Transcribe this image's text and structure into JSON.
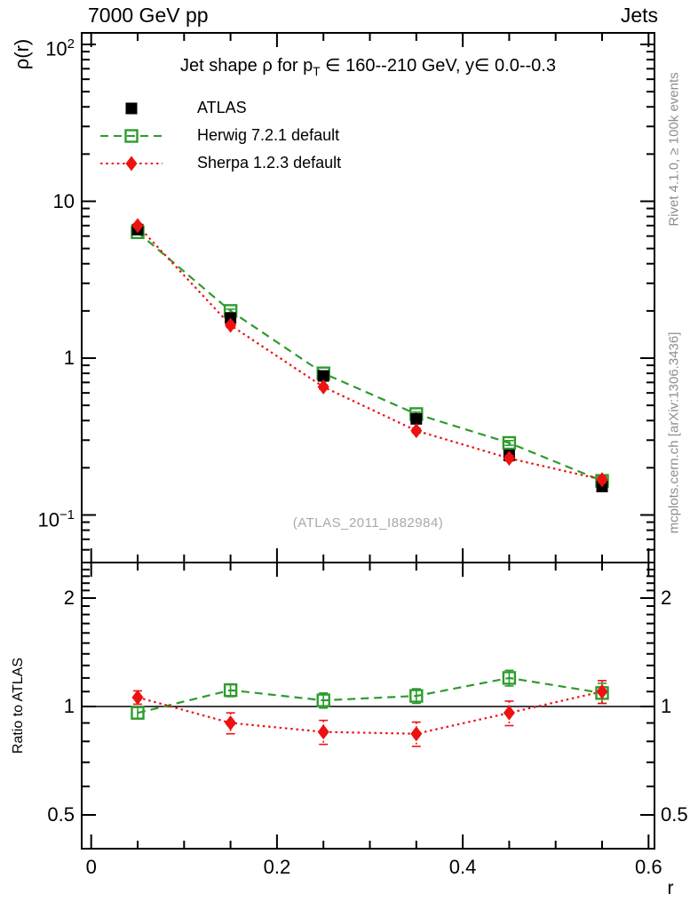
{
  "header": {
    "left": "7000 GeV pp",
    "right": "Jets"
  },
  "side_notes": {
    "top_right": "Rivet 4.1.0, ≥ 100k events",
    "bottom_right": "mcplots.cern.ch [arXiv:1306.3436]"
  },
  "xlabel": "r",
  "main_panel": {
    "ylabel": "ρ(r)",
    "title_parts": {
      "pre": "Jet shape ρ for p",
      "sub": "T",
      "post": " ∈ 160--210 GeV, y∈ 0.0--0.3"
    }
  },
  "ratio_panel": {
    "ylabel": "Ratio to ATLAS"
  },
  "colors": {
    "gray_text": "#8e8e8e",
    "watermark": "#a9a9a9",
    "frame": "#000000"
  },
  "chart_data": [
    {
      "type": "scatter",
      "panel": "main",
      "title": "Jet shape ρ for p_T ∈ 160--210 GeV, y∈ 0.0--0.3",
      "xlabel": "r",
      "ylabel": "ρ(r)",
      "yscale": "log",
      "xlim": [
        -0.01,
        0.61
      ],
      "ylim": [
        0.05,
        118
      ],
      "legend_position": "top-left",
      "watermark": "(ATLAS_2011_I882984)",
      "x": [
        0.05,
        0.15,
        0.25,
        0.35,
        0.45,
        0.55
      ],
      "x_ticks": [
        {
          "value": 0,
          "label": "0"
        },
        {
          "value": 0.2,
          "label": "0.2"
        },
        {
          "value": 0.4,
          "label": "0.4"
        },
        {
          "value": 0.6,
          "label": "0.6"
        }
      ],
      "x_minor_step": 0.05,
      "y_ticks": [
        {
          "value": 100,
          "base": "10",
          "exp": "2"
        },
        {
          "value": 10,
          "base": "10",
          "exp": ""
        },
        {
          "value": 1,
          "base": "1",
          "exp": ""
        },
        {
          "value": 0.1,
          "base": "10",
          "exp": "−1"
        }
      ],
      "series": [
        {
          "name": "ATLAS",
          "color": "#000000",
          "marker": "filled-square",
          "line": "none",
          "values": [
            6.6,
            1.8,
            0.77,
            0.41,
            0.24,
            0.152
          ],
          "errors": [
            0.25,
            0.07,
            0.03,
            0.018,
            0.012,
            0.008
          ]
        },
        {
          "name": "Herwig 7.2.1 default",
          "color": "#2e9b2e",
          "marker": "open-square",
          "line": "dashed",
          "values": [
            6.35,
            2.0,
            0.8,
            0.44,
            0.288,
            0.165
          ],
          "errors": [
            0.15,
            0.05,
            0.022,
            0.013,
            0.01,
            0.007
          ]
        },
        {
          "name": "Sherpa 1.2.3 default",
          "color": "#ee1111",
          "marker": "filled-diamond",
          "line": "dotted",
          "values": [
            7.0,
            1.62,
            0.655,
            0.345,
            0.23,
            0.168
          ],
          "errors": [
            0.2,
            0.05,
            0.02,
            0.012,
            0.009,
            0.007
          ]
        }
      ]
    },
    {
      "type": "scatter",
      "panel": "ratio",
      "ylabel": "Ratio to ATLAS",
      "yscale": "log",
      "xlim": [
        -0.01,
        0.61
      ],
      "ylim": [
        0.403,
        2.51
      ],
      "reference_line": 1,
      "x": [
        0.05,
        0.15,
        0.25,
        0.35,
        0.45,
        0.55
      ],
      "y_ticks": [
        {
          "value": 2,
          "label": "2"
        },
        {
          "value": 1,
          "label": "1"
        },
        {
          "value": 0.5,
          "label": "0.5"
        }
      ],
      "series": [
        {
          "name": "Herwig 7.2.1 default",
          "color": "#2e9b2e",
          "marker": "open-square",
          "line": "dashed",
          "values": [
            0.96,
            1.11,
            1.04,
            1.07,
            1.2,
            1.09
          ],
          "errors": [
            0.035,
            0.045,
            0.05,
            0.05,
            0.06,
            0.07
          ]
        },
        {
          "name": "Sherpa 1.2.3 default",
          "color": "#ee1111",
          "marker": "filled-diamond",
          "line": "dotted",
          "values": [
            1.06,
            0.9,
            0.85,
            0.84,
            0.96,
            1.1
          ],
          "errors": [
            0.045,
            0.06,
            0.065,
            0.065,
            0.075,
            0.08
          ]
        }
      ]
    }
  ]
}
